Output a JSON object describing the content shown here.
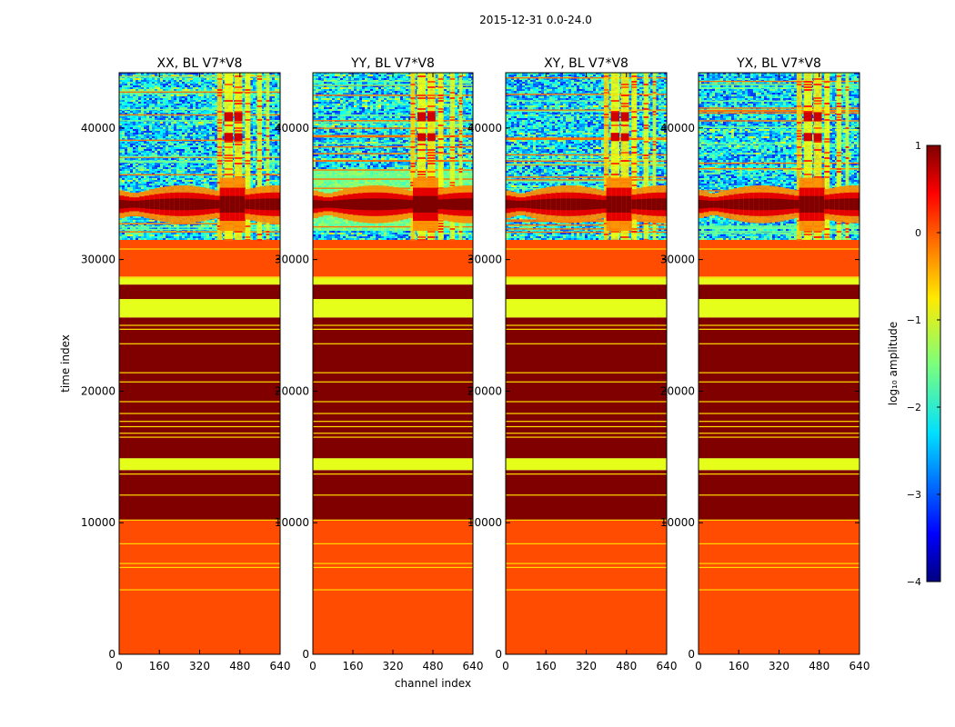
{
  "figure": {
    "suptitle": "2015-12-31 0.0-24.0"
  },
  "chart_data": {
    "type": "heatmap",
    "shared": {
      "xlabel": "channel index",
      "ylabel": "time index",
      "xlim": [
        0,
        640
      ],
      "ylim": [
        0,
        44200
      ],
      "xticks": [
        0,
        160,
        320,
        480,
        640
      ],
      "yticks": [
        0,
        10000,
        20000,
        30000,
        40000
      ],
      "xtick_labels": [
        "0",
        "160",
        "320",
        "480",
        "640"
      ],
      "ytick_labels": [
        "0",
        "10000",
        "20000",
        "30000",
        "40000"
      ]
    },
    "panels": [
      {
        "title": "XX, BL V7*V8",
        "show_ylabel": true,
        "show_xlabel": false,
        "variant": "xx"
      },
      {
        "title": "YY, BL V7*V8",
        "show_ylabel": false,
        "show_xlabel": true,
        "variant": "yy"
      },
      {
        "title": "XY, BL V7*V8",
        "show_ylabel": false,
        "show_xlabel": false,
        "variant": "xy"
      },
      {
        "title": "YX, BL V7*V8",
        "show_ylabel": false,
        "show_xlabel": false,
        "variant": "yx"
      }
    ],
    "time_bands": [
      {
        "from": 0,
        "to": 10200,
        "log_amp": 0
      },
      {
        "from": 10200,
        "to": 14000,
        "log_amp": 1
      },
      {
        "from": 14000,
        "to": 14900,
        "log_amp": -1
      },
      {
        "from": 14900,
        "to": 25600,
        "log_amp": 1
      },
      {
        "from": 25600,
        "to": 27000,
        "log_amp": -1
      },
      {
        "from": 27000,
        "to": 28100,
        "log_amp": 1
      },
      {
        "from": 28100,
        "to": 28700,
        "log_amp": -1
      },
      {
        "from": 28700,
        "to": 31500,
        "log_amp": 0
      }
    ],
    "thin_lines_time": [
      4900,
      6600,
      6900,
      8400,
      10200,
      12100,
      13700,
      16500,
      16800,
      17300,
      17700,
      18300,
      19200,
      20700,
      21400,
      23600,
      24700,
      25000,
      28600,
      30800
    ],
    "noisy_region": {
      "from": 31500,
      "to": 44200,
      "log_amp_range": [
        -3.2,
        -1.4
      ]
    },
    "bright_channel_columns": [
      {
        "from": 390,
        "to": 410,
        "log_amp": -0.7
      },
      {
        "from": 418,
        "to": 452,
        "log_amp": -0.9
      },
      {
        "from": 458,
        "to": 490,
        "log_amp": -0.8
      },
      {
        "from": 500,
        "to": 522,
        "log_amp": -0.9
      },
      {
        "from": 548,
        "to": 568,
        "log_amp": -1.0
      },
      {
        "from": 584,
        "to": 598,
        "log_amp": -1.1
      }
    ],
    "strong_time_feature": {
      "center": 34200,
      "half_width": 900,
      "peak_log_amp": 1
    },
    "colorbar": {
      "label": "log₁₀ amplitude",
      "vmin": -4,
      "vmax": 1,
      "ticks": [
        1,
        0,
        -1,
        -2,
        -3,
        -4
      ],
      "tick_labels": [
        "1",
        "0",
        "−1",
        "−2",
        "−3",
        "−4"
      ]
    }
  }
}
